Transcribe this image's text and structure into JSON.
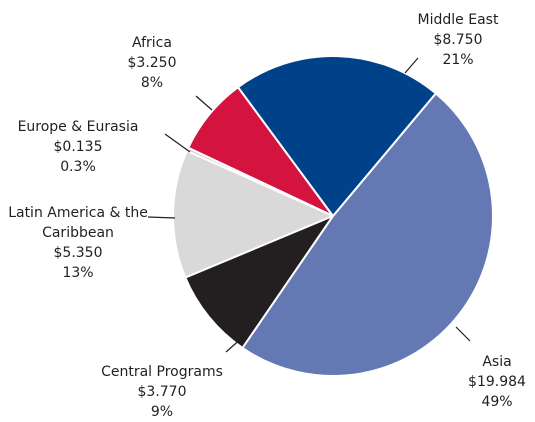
{
  "chart_data": {
    "type": "pie",
    "categories": [
      "Middle East",
      "Asia",
      "Central Programs",
      "Latin America & the Caribbean",
      "Europe & Eurasia",
      "Africa"
    ],
    "values": [
      8.75,
      19.984,
      3.77,
      5.35,
      0.135,
      3.25
    ],
    "value_labels": [
      "$8.750",
      "$19.984",
      "$3.770",
      "$5.350",
      "$0.135",
      "$3.250"
    ],
    "percents": [
      21,
      49,
      9,
      13,
      0.3,
      8
    ],
    "percent_labels": [
      "21%",
      "49%",
      "9%",
      "13%",
      "0.3%",
      "8%"
    ],
    "colors": [
      "#00428a",
      "#6478b4",
      "#231f20",
      "#d9d9d9",
      "#c8c8c8",
      "#d4143f"
    ]
  }
}
